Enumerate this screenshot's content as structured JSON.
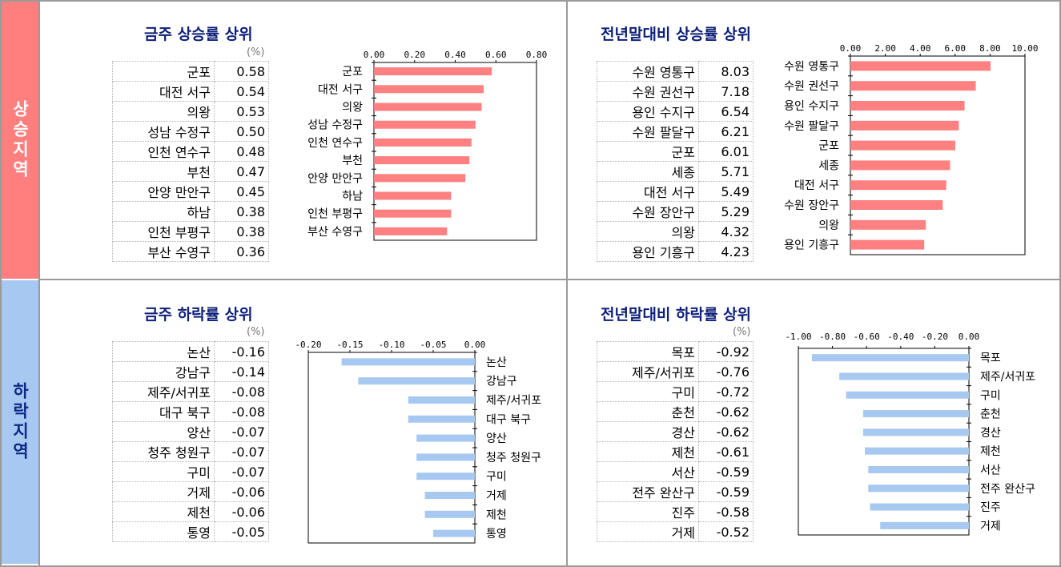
{
  "sections": {
    "rise_label": "상승지역",
    "fall_label": "하락지역"
  },
  "colors": {
    "rise": "#ff8080",
    "fall": "#a7c8f0",
    "title": "#0c1f7a"
  },
  "unit": "(%)",
  "chart_data": [
    {
      "id": "week-rise",
      "type": "bar",
      "orientation": "horizontal",
      "title": "금주 상승률 상위",
      "categories": [
        "군포",
        "대전 서구",
        "의왕",
        "성남 수정구",
        "인천 연수구",
        "부천",
        "안양 만안구",
        "하남",
        "인천 부평구",
        "부산 수영구"
      ],
      "values": [
        "0.58",
        "0.54",
        "0.53",
        "0.50",
        "0.48",
        "0.47",
        "0.45",
        "0.38",
        "0.38",
        "0.36"
      ],
      "xlim": [
        0,
        0.8
      ],
      "ticks": [
        "0.00",
        "0.20",
        "0.40",
        "0.60",
        "0.80"
      ]
    },
    {
      "id": "ytd-rise",
      "type": "bar",
      "orientation": "horizontal",
      "title": "전년말대비 상승률 상위",
      "categories": [
        "수원 영통구",
        "수원 권선구",
        "용인 수지구",
        "수원 팔달구",
        "군포",
        "세종",
        "대전 서구",
        "수원 장안구",
        "의왕",
        "용인 기흥구"
      ],
      "values": [
        "8.03",
        "7.18",
        "6.54",
        "6.21",
        "6.01",
        "5.71",
        "5.49",
        "5.29",
        "4.32",
        "4.23"
      ],
      "xlim": [
        0,
        10
      ],
      "ticks": [
        "0.00",
        "2.00",
        "4.00",
        "6.00",
        "8.00",
        "10.00"
      ]
    },
    {
      "id": "week-fall",
      "type": "bar",
      "orientation": "horizontal",
      "title": "금주 하락률 상위",
      "categories": [
        "논산",
        "강남구",
        "제주/서귀포",
        "대구 북구",
        "양산",
        "청주 청원구",
        "구미",
        "거제",
        "제천",
        "통영"
      ],
      "values": [
        "-0.16",
        "-0.14",
        "-0.08",
        "-0.08",
        "-0.07",
        "-0.07",
        "-0.07",
        "-0.06",
        "-0.06",
        "-0.05"
      ],
      "xlim": [
        -0.2,
        0
      ],
      "ticks": [
        "-0.20",
        "-0.15",
        "-0.10",
        "-0.05",
        "0.00"
      ]
    },
    {
      "id": "ytd-fall",
      "type": "bar",
      "orientation": "horizontal",
      "title": "전년말대비 하락률 상위",
      "categories": [
        "목포",
        "제주/서귀포",
        "구미",
        "춘천",
        "경산",
        "제천",
        "서산",
        "전주 완산구",
        "진주",
        "거제"
      ],
      "values": [
        "-0.92",
        "-0.76",
        "-0.72",
        "-0.62",
        "-0.62",
        "-0.61",
        "-0.59",
        "-0.59",
        "-0.58",
        "-0.52"
      ],
      "xlim": [
        -1.0,
        0
      ],
      "ticks": [
        "-1.00",
        "-0.80",
        "-0.60",
        "-0.40",
        "-0.20",
        "0.00"
      ]
    }
  ]
}
